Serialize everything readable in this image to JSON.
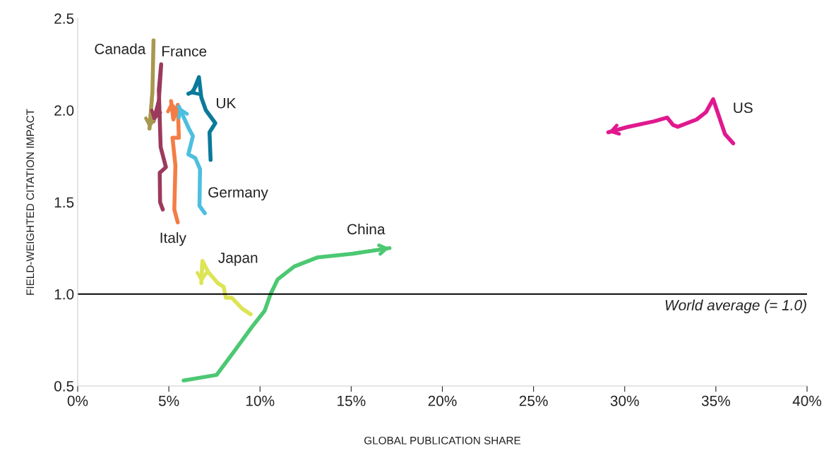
{
  "chart_data": {
    "type": "line",
    "xlabel": "GLOBAL PUBLICATION SHARE",
    "ylabel": "FIELD-WEIGHTED CITATION IMPACT",
    "xlim": [
      0,
      40
    ],
    "ylim": [
      0.5,
      2.5
    ],
    "xticks": [
      {
        "value": 0,
        "label": "0%"
      },
      {
        "value": 5,
        "label": "5%"
      },
      {
        "value": 10,
        "label": "10%"
      },
      {
        "value": 15,
        "label": "15%"
      },
      {
        "value": 20,
        "label": "20%"
      },
      {
        "value": 25,
        "label": "25%"
      },
      {
        "value": 30,
        "label": "30%"
      },
      {
        "value": 35,
        "label": "35%"
      },
      {
        "value": 40,
        "label": "40%"
      }
    ],
    "yticks": [
      {
        "value": 0.5,
        "label": "0.5"
      },
      {
        "value": 1,
        "label": "1.0"
      },
      {
        "value": 1.5,
        "label": "1.5"
      },
      {
        "value": 2,
        "label": "2.0"
      },
      {
        "value": 2.5,
        "label": "2.5"
      }
    ],
    "grid": false,
    "legend": false,
    "marker": "none",
    "line_style": "solid",
    "series": [
      {
        "name": "Canada",
        "color": "#a8984e",
        "x": [
          4.16,
          4.1,
          3.94
        ],
        "values": [
          2.38,
          2.1,
          1.9
        ]
      },
      {
        "name": "France",
        "color": "#9b3a5e",
        "x": [
          4.67,
          4.52,
          4.5,
          4.84,
          4.55,
          4.45,
          4.58,
          4.45,
          4.16
        ],
        "values": [
          1.46,
          1.5,
          1.66,
          1.69,
          1.8,
          2.11,
          2.25,
          2.05,
          1.94
        ]
      },
      {
        "name": "UK",
        "color": "#0b7a9a",
        "x": [
          7.29,
          7.23,
          7.55,
          7.03,
          6.78,
          6.65,
          6.33,
          6.07
        ],
        "values": [
          1.73,
          1.88,
          1.93,
          2.0,
          2.07,
          2.18,
          2.1,
          2.09
        ]
      },
      {
        "name": "Italy",
        "color": "#f47d46",
        "x": [
          5.49,
          5.3,
          5.36,
          5.2,
          5.55,
          5.49,
          5.25,
          5.12
        ],
        "values": [
          1.39,
          1.46,
          1.7,
          1.85,
          1.85,
          2.03,
          1.95,
          2.05
        ]
      },
      {
        "name": "Germany",
        "color": "#4dbfdf",
        "x": [
          6.97,
          6.68,
          6.71,
          6.45,
          6.07,
          6.32,
          6.1,
          5.55
        ],
        "values": [
          1.44,
          1.48,
          1.68,
          1.74,
          1.76,
          1.86,
          1.9,
          2.02
        ]
      },
      {
        "name": "Japan",
        "color": "#dde455",
        "x": [
          9.49,
          9.03,
          8.45,
          8.13,
          8.0,
          7.68,
          7.16,
          6.84,
          6.78
        ],
        "values": [
          0.89,
          0.92,
          0.98,
          0.98,
          1.04,
          1.06,
          1.12,
          1.18,
          1.06
        ]
      },
      {
        "name": "China",
        "color": "#4cc873",
        "x": [
          5.81,
          7.62,
          8.52,
          9.55,
          10.26,
          10.58,
          10.97,
          11.88,
          13.17,
          15.1,
          17.1
        ],
        "values": [
          0.53,
          0.56,
          0.68,
          0.82,
          0.91,
          1.0,
          1.08,
          1.15,
          1.2,
          1.22,
          1.25
        ]
      },
      {
        "name": "US",
        "color": "#e0198f",
        "x": [
          35.95,
          35.5,
          34.85,
          34.46,
          33.95,
          32.91,
          32.65,
          32.33,
          31.62,
          30.2,
          29.1
        ],
        "values": [
          1.82,
          1.87,
          2.06,
          1.99,
          1.95,
          1.91,
          1.92,
          1.96,
          1.94,
          1.91,
          1.88
        ]
      }
    ],
    "ref_lines": [
      {
        "axis": "y",
        "value": 1.0,
        "label": "World average (= 1.0)",
        "color": "#000000"
      }
    ]
  }
}
